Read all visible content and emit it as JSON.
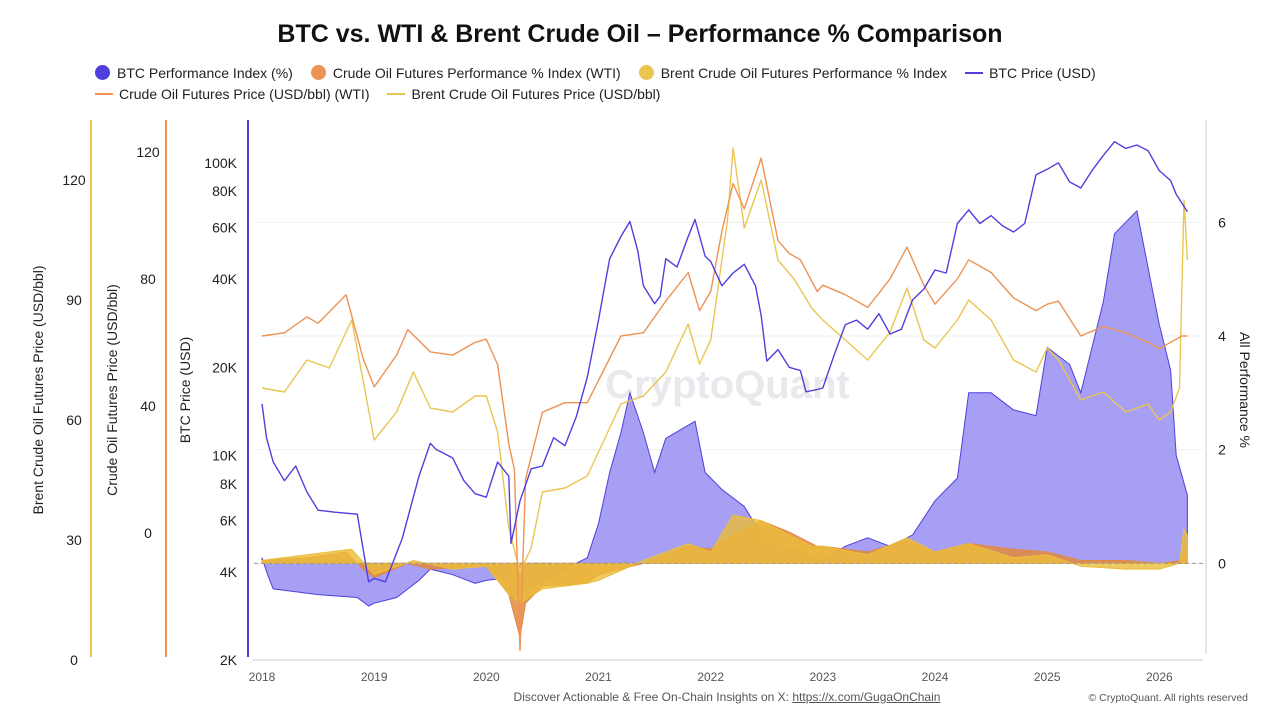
{
  "chart_data": {
    "type": "line",
    "title": "BTC vs. WTI & Brent Crude Oil – Performance % Comparison",
    "legend": [
      {
        "label": "BTC Performance Index (%)",
        "kind": "dot",
        "color": "#4f3fdc"
      },
      {
        "label": "Crude Oil Futures Performance % Index (WTI)",
        "kind": "dot",
        "color": "#ec9355"
      },
      {
        "label": "Brent Crude Oil Futures Performance % Index",
        "kind": "dot",
        "color": "#ebc552"
      },
      {
        "label": "BTC Price (USD)",
        "kind": "line",
        "color": "#4f3fdc"
      },
      {
        "label": "Crude Oil Futures Price (USD/bbl) (WTI)",
        "kind": "line",
        "color": "#ec9355"
      },
      {
        "label": "Brent Crude Oil Futures Price (USD/bbl)",
        "kind": "line",
        "color": "#ebc552"
      }
    ],
    "legend_placement": "top",
    "x": {
      "min": 2018.0,
      "max": 2026.3,
      "ticks": [
        "2018",
        "2019",
        "2020",
        "2021",
        "2022",
        "2023",
        "2024",
        "2025",
        "2026"
      ]
    },
    "axes": {
      "brent": {
        "label": "Brent Crude Oil Futures Price (USD/bbl)",
        "min": 0,
        "max": 135,
        "ticks": [
          0,
          30,
          60,
          90,
          120
        ],
        "color": "#ebc552"
      },
      "wti": {
        "label": "Crude Oil Futures Price (USD/bbl)",
        "min": -40,
        "max": 130,
        "ticks": [
          0,
          40,
          80,
          120
        ],
        "color": "#ec9355"
      },
      "btc": {
        "label": "BTC Price (USD)",
        "scale": "log",
        "min": 2000,
        "max": 140000,
        "ticks": [
          2000,
          4000,
          6000,
          8000,
          10000,
          20000,
          40000,
          60000,
          80000,
          100000
        ],
        "tick_labels": [
          "2K",
          "4K",
          "6K",
          "8K",
          "10K",
          "20K",
          "40K",
          "60K",
          "80K",
          "100K"
        ],
        "color": "#4f3fdc"
      },
      "perf": {
        "label": "All Performance %",
        "min": -1.7,
        "max": 7.8,
        "ticks": [
          0,
          2,
          4,
          6
        ]
      }
    },
    "series": [
      {
        "name": "BTC Price (USD)",
        "axis": "btc",
        "x": [
          2018.0,
          2018.04,
          2018.1,
          2018.2,
          2018.3,
          2018.4,
          2018.5,
          2018.65,
          2018.85,
          2018.95,
          2019.0,
          2019.1,
          2019.25,
          2019.4,
          2019.5,
          2019.55,
          2019.7,
          2019.8,
          2019.9,
          2020.0,
          2020.1,
          2020.2,
          2020.22,
          2020.3,
          2020.4,
          2020.5,
          2020.6,
          2020.7,
          2020.8,
          2020.9,
          2021.0,
          2021.05,
          2021.1,
          2021.2,
          2021.28,
          2021.35,
          2021.4,
          2021.5,
          2021.55,
          2021.6,
          2021.7,
          2021.8,
          2021.86,
          2021.95,
          2022.0,
          2022.1,
          2022.2,
          2022.3,
          2022.4,
          2022.45,
          2022.5,
          2022.6,
          2022.7,
          2022.8,
          2022.85,
          2022.95,
          2023.0,
          2023.1,
          2023.2,
          2023.3,
          2023.4,
          2023.5,
          2023.6,
          2023.7,
          2023.8,
          2023.9,
          2024.0,
          2024.1,
          2024.2,
          2024.3,
          2024.4,
          2024.5,
          2024.6,
          2024.7,
          2024.8,
          2024.9,
          2025.0,
          2025.1,
          2025.2,
          2025.3,
          2025.4,
          2025.5,
          2025.6,
          2025.7,
          2025.8,
          2025.9,
          2026.0,
          2026.1,
          2026.15,
          2026.25
        ],
        "y": [
          15000,
          11500,
          9500,
          8200,
          9200,
          7500,
          6500,
          6400,
          6300,
          3700,
          3800,
          3700,
          5200,
          8500,
          11000,
          10500,
          9800,
          8200,
          7400,
          7200,
          9500,
          8500,
          5000,
          7000,
          9000,
          9200,
          11500,
          10800,
          13500,
          18500,
          29000,
          37000,
          47000,
          56000,
          63000,
          50000,
          38000,
          33000,
          35000,
          47000,
          44000,
          56000,
          64000,
          48000,
          46000,
          38000,
          42000,
          45000,
          38000,
          30000,
          21000,
          23000,
          20000,
          19500,
          16500,
          16800,
          17000,
          22000,
          28000,
          29000,
          27000,
          30500,
          26000,
          27000,
          34000,
          37000,
          43000,
          42000,
          62000,
          69000,
          62000,
          66000,
          61000,
          58000,
          62000,
          91000,
          95000,
          100000,
          86000,
          82000,
          94000,
          106000,
          118000,
          112000,
          115000,
          110000,
          94000,
          87000,
          78000,
          68000
        ]
      },
      {
        "name": "Crude Oil Futures Price (USD/bbl) (WTI)",
        "axis": "wti",
        "x": [
          2018.0,
          2018.2,
          2018.4,
          2018.5,
          2018.75,
          2018.9,
          2019.0,
          2019.2,
          2019.3,
          2019.5,
          2019.7,
          2019.9,
          2020.0,
          2020.1,
          2020.2,
          2020.25,
          2020.3,
          2020.35,
          2020.5,
          2020.7,
          2020.9,
          2021.0,
          2021.2,
          2021.4,
          2021.6,
          2021.8,
          2021.9,
          2022.0,
          2022.1,
          2022.2,
          2022.3,
          2022.45,
          2022.6,
          2022.7,
          2022.8,
          2022.95,
          2023.0,
          2023.2,
          2023.4,
          2023.6,
          2023.75,
          2023.9,
          2024.0,
          2024.2,
          2024.3,
          2024.5,
          2024.7,
          2024.9,
          2025.0,
          2025.1,
          2025.3,
          2025.5,
          2025.7,
          2025.9,
          2026.0,
          2026.2,
          2026.25
        ],
        "y": [
          62,
          63,
          68,
          66,
          75,
          55,
          46,
          56,
          64,
          57,
          56,
          60,
          61,
          53,
          28,
          20,
          -37,
          17,
          38,
          41,
          41,
          48,
          62,
          63,
          73,
          82,
          70,
          76,
          95,
          110,
          102,
          118,
          92,
          88,
          86,
          76,
          78,
          75,
          71,
          80,
          90,
          78,
          72,
          80,
          86,
          82,
          74,
          70,
          72,
          73,
          62,
          65,
          63,
          60,
          58,
          62,
          62
        ]
      },
      {
        "name": "Brent Crude Oil Futures Price (USD/bbl)",
        "axis": "brent",
        "x": [
          2018.0,
          2018.2,
          2018.4,
          2018.6,
          2018.8,
          2018.9,
          2019.0,
          2019.2,
          2019.35,
          2019.5,
          2019.7,
          2019.9,
          2020.0,
          2020.1,
          2020.2,
          2020.3,
          2020.4,
          2020.5,
          2020.7,
          2020.9,
          2021.0,
          2021.2,
          2021.4,
          2021.6,
          2021.8,
          2021.9,
          2022.0,
          2022.15,
          2022.2,
          2022.3,
          2022.45,
          2022.6,
          2022.75,
          2022.9,
          2023.0,
          2023.2,
          2023.4,
          2023.6,
          2023.75,
          2023.9,
          2024.0,
          2024.2,
          2024.3,
          2024.5,
          2024.7,
          2024.9,
          2025.0,
          2025.1,
          2025.3,
          2025.5,
          2025.7,
          2025.9,
          2026.0,
          2026.1,
          2026.18,
          2026.22,
          2026.25
        ],
        "y": [
          68,
          67,
          75,
          73,
          85,
          70,
          55,
          62,
          72,
          63,
          62,
          66,
          66,
          57,
          33,
          22,
          28,
          42,
          43,
          46,
          52,
          64,
          66,
          72,
          84,
          74,
          80,
          110,
          128,
          108,
          120,
          100,
          95,
          88,
          85,
          80,
          75,
          82,
          93,
          80,
          78,
          85,
          90,
          85,
          75,
          72,
          78,
          75,
          65,
          67,
          62,
          64,
          60,
          62,
          68,
          115,
          100
        ]
      },
      {
        "name": "BTC Performance Index (%)",
        "axis": "perf",
        "fill": "area",
        "x": [
          2018.0,
          2018.05,
          2018.1,
          2018.3,
          2018.5,
          2018.85,
          2018.95,
          2019.0,
          2019.2,
          2019.4,
          2019.5,
          2019.7,
          2019.9,
          2020.0,
          2020.2,
          2020.22,
          2020.4,
          2020.6,
          2020.8,
          2020.9,
          2021.0,
          2021.1,
          2021.2,
          2021.28,
          2021.4,
          2021.5,
          2021.6,
          2021.86,
          2021.95,
          2022.1,
          2022.3,
          2022.5,
          2022.6,
          2022.8,
          2022.95,
          2023.0,
          2023.2,
          2023.4,
          2023.6,
          2023.8,
          2023.9,
          2024.0,
          2024.2,
          2024.3,
          2024.5,
          2024.7,
          2024.9,
          2025.0,
          2025.2,
          2025.3,
          2025.5,
          2025.6,
          2025.8,
          2025.9,
          2026.0,
          2026.1,
          2026.15,
          2026.25
        ],
        "y": [
          0.1,
          -0.2,
          -0.45,
          -0.5,
          -0.55,
          -0.6,
          -0.75,
          -0.7,
          -0.6,
          -0.3,
          -0.1,
          -0.2,
          -0.35,
          -0.3,
          -0.25,
          -0.6,
          -0.4,
          -0.2,
          0.0,
          0.1,
          0.7,
          1.6,
          2.3,
          3.0,
          2.3,
          1.6,
          2.2,
          2.5,
          1.6,
          1.3,
          1.0,
          0.35,
          0.3,
          0.2,
          0.05,
          0.05,
          0.3,
          0.45,
          0.3,
          0.5,
          0.8,
          1.1,
          1.5,
          3.0,
          3.0,
          2.7,
          2.6,
          3.8,
          3.5,
          3.0,
          4.6,
          5.8,
          6.2,
          5.2,
          4.2,
          3.4,
          1.9,
          1.2
        ]
      },
      {
        "name": "Crude Oil Futures Performance % Index (WTI)",
        "axis": "perf",
        "fill": "area",
        "x": [
          2018.0,
          2018.4,
          2018.75,
          2018.9,
          2019.0,
          2019.3,
          2019.5,
          2019.9,
          2020.0,
          2020.2,
          2020.3,
          2020.35,
          2020.5,
          2020.9,
          2021.0,
          2021.4,
          2021.8,
          2022.0,
          2022.2,
          2022.45,
          2022.7,
          2022.95,
          2023.0,
          2023.4,
          2023.75,
          2024.0,
          2024.3,
          2024.7,
          2025.0,
          2025.3,
          2025.7,
          2026.0,
          2026.2,
          2026.25
        ],
        "y": [
          0.05,
          0.1,
          0.2,
          -0.1,
          -0.25,
          0.0,
          -0.1,
          -0.05,
          -0.02,
          -0.55,
          -1.3,
          -0.7,
          -0.4,
          -0.35,
          -0.2,
          0.0,
          0.3,
          0.25,
          0.5,
          0.75,
          0.55,
          0.3,
          0.3,
          0.2,
          0.4,
          0.2,
          0.35,
          0.25,
          0.2,
          0.05,
          0.05,
          0.0,
          0.05,
          0.4
        ]
      },
      {
        "name": "Brent Crude Oil Futures Performance % Index",
        "axis": "perf",
        "fill": "area",
        "x": [
          2018.0,
          2018.4,
          2018.8,
          2019.0,
          2019.35,
          2019.7,
          2020.0,
          2020.2,
          2020.3,
          2020.5,
          2020.9,
          2021.0,
          2021.4,
          2021.8,
          2022.0,
          2022.2,
          2022.45,
          2022.75,
          2022.9,
          2023.0,
          2023.4,
          2023.75,
          2024.0,
          2024.3,
          2024.7,
          2025.0,
          2025.3,
          2025.7,
          2026.0,
          2026.18,
          2026.22,
          2026.25
        ],
        "y": [
          0.05,
          0.15,
          0.25,
          -0.2,
          0.05,
          -0.1,
          -0.05,
          -0.55,
          -0.7,
          -0.45,
          -0.35,
          -0.3,
          0.05,
          0.35,
          0.2,
          0.85,
          0.75,
          0.45,
          0.3,
          0.3,
          0.15,
          0.45,
          0.2,
          0.35,
          0.1,
          0.15,
          -0.05,
          -0.1,
          -0.1,
          0.0,
          0.6,
          0.5
        ]
      }
    ],
    "watermark": "CryptoQuant",
    "grid": true
  },
  "footer": {
    "note_prefix": "Discover Actionable & Free On-Chain Insights on X: ",
    "note_link": "https://x.com/GugaOnChain"
  },
  "copyright": "© CryptoQuant. All rights reserved"
}
